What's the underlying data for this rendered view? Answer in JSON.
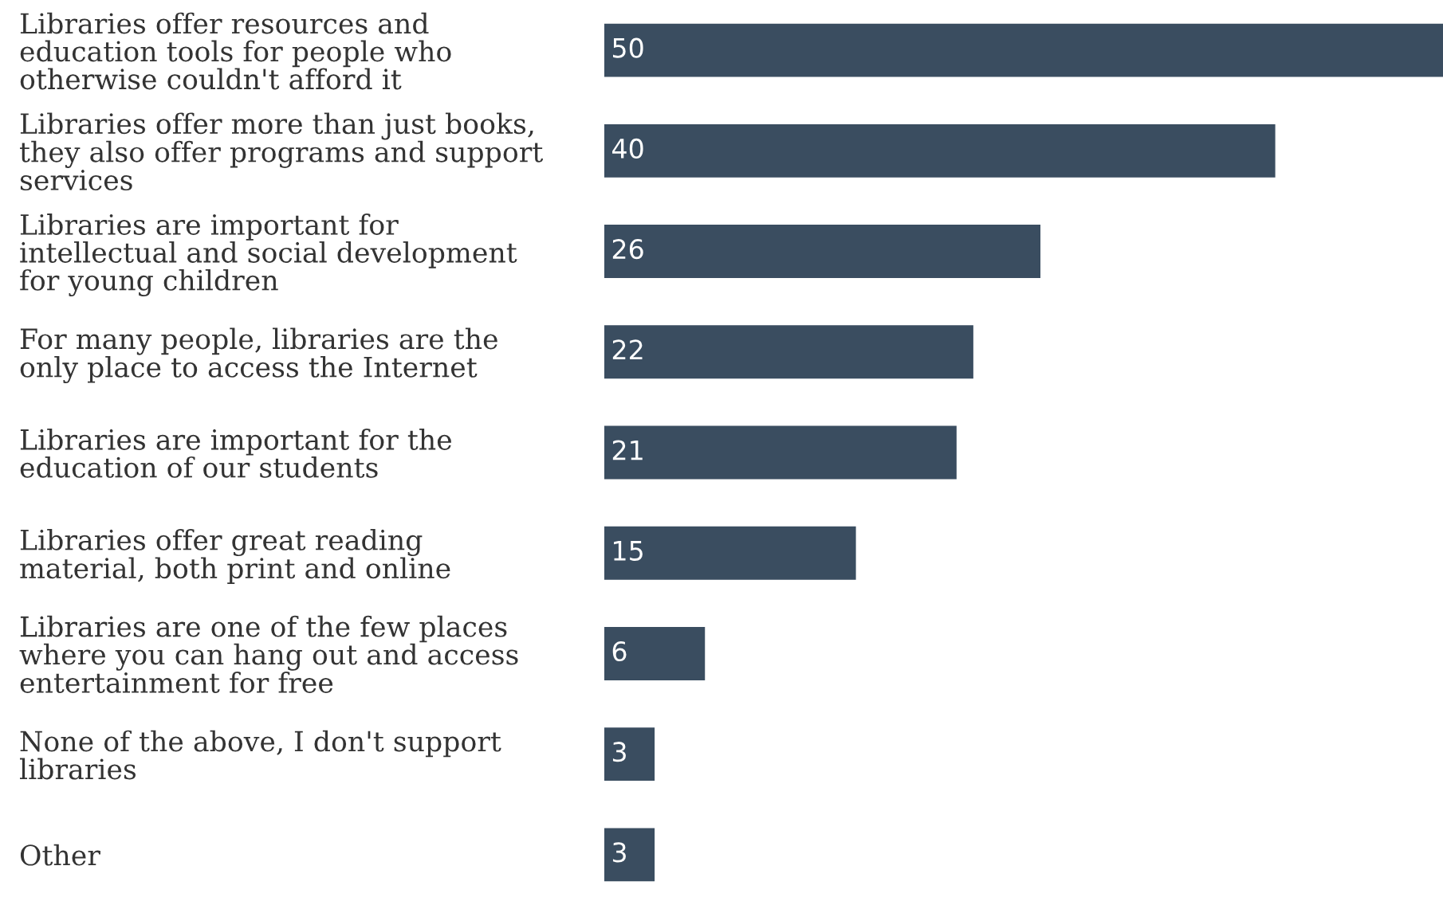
{
  "chart_data": {
    "type": "bar",
    "orientation": "horizontal",
    "data_labels": true,
    "grid": false,
    "legend": false,
    "tick_labels": "y",
    "categories": [
      "Libraries offer resources and\neducation tools for people who\notherwise couldn't afford it",
      "Libraries offer more than just books,\nthey also offer programs and support\nservices",
      "Libraries are important for\nintellectual and social development\nfor young children",
      "For many people, libraries are the\nonly place to access the Internet",
      "Libraries are important for the\neducation of our students",
      "Libraries offer great reading\nmaterial, both print and online",
      "Libraries are one of the few places\nwhere you can hang out and access\nentertainment for free",
      "None of the above, I don't support\nlibraries",
      "Other"
    ],
    "values": [
      50,
      40,
      26,
      22,
      21,
      15,
      6,
      3,
      3
    ],
    "color": "#3a4d60"
  }
}
